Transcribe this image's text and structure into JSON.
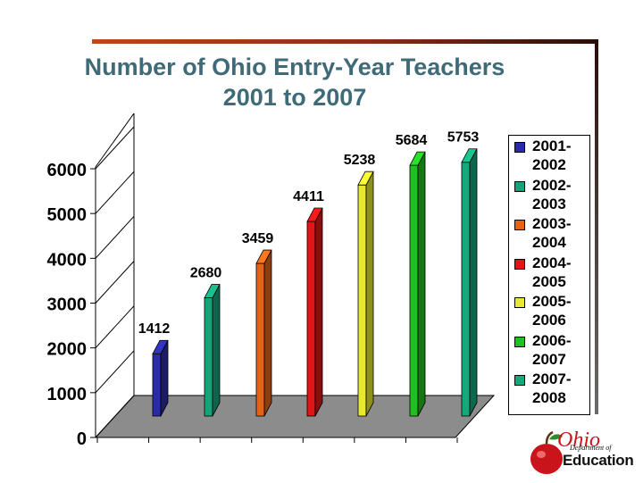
{
  "title": {
    "line1": "Number of Ohio Entry-Year Teachers",
    "line2": "2001 to 2007"
  },
  "chart_data": {
    "type": "bar",
    "title": "Number of Ohio Entry-Year Teachers 2001 to 2007",
    "categories": [
      "2001-2002",
      "2002-2003",
      "2003-2004",
      "2004-2005",
      "2005-2006",
      "2006-2007",
      "2007-2008"
    ],
    "values": [
      1412,
      2680,
      3459,
      4411,
      5238,
      5684,
      5753
    ],
    "data_labels": [
      "1412",
      "2680",
      "3459",
      "4411",
      "5238",
      "5684",
      "5753"
    ],
    "y_ticks": [
      "0",
      "1000",
      "2000",
      "3000",
      "4000",
      "5000",
      "6000"
    ],
    "ylim": [
      0,
      6000
    ],
    "colors": [
      "#2b2ba8",
      "#17a37a",
      "#e26418",
      "#e01515",
      "#e8e830",
      "#20c020",
      "#14a87a"
    ],
    "legend": {
      "placement": "right",
      "entries": [
        {
          "line1": "2001-",
          "line2": "2002"
        },
        {
          "line1": "2002-",
          "line2": "2003"
        },
        {
          "line1": "2003-",
          "line2": "2004"
        },
        {
          "line1": "2004-",
          "line2": "2005"
        },
        {
          "line1": "2005-",
          "line2": "2006"
        },
        {
          "line1": "2006-",
          "line2": "2007"
        },
        {
          "line1": "2007-",
          "line2": "2008"
        }
      ]
    }
  },
  "logo": {
    "brand_text": "Ohio",
    "department": "Department of",
    "education": "Education"
  }
}
